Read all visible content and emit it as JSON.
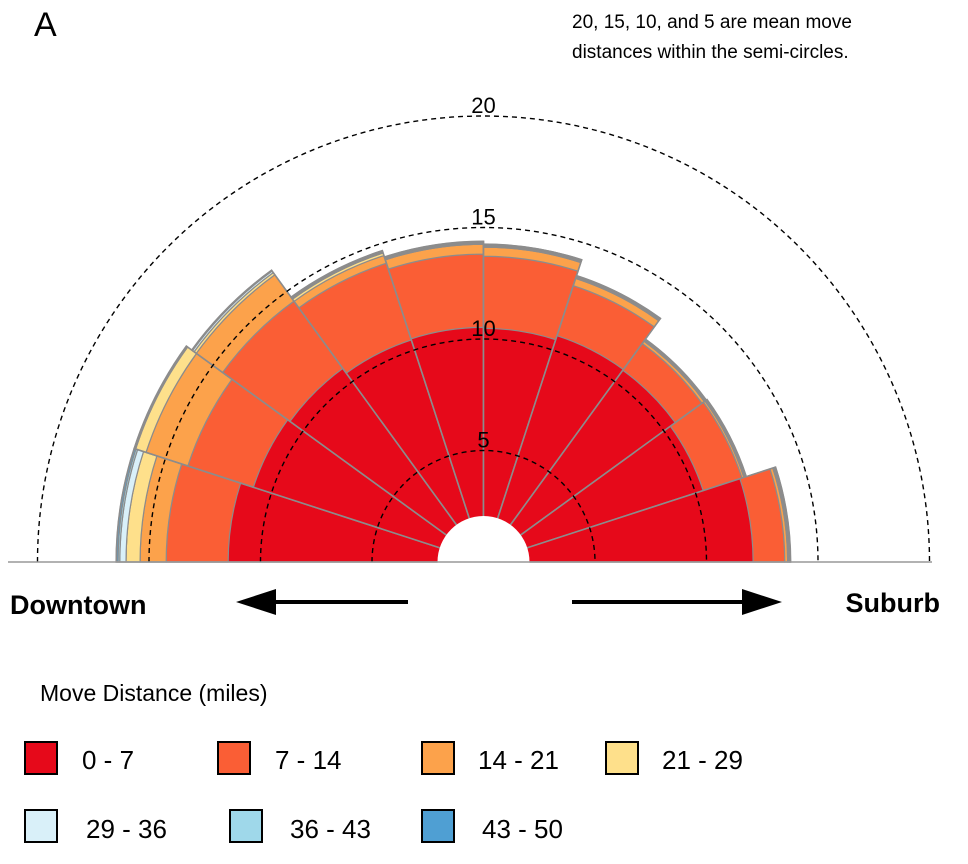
{
  "panel_label": "A",
  "note_lines": [
    "20, 15, 10, and 5 are mean move",
    "distances within the semi-circles."
  ],
  "direction_labels": {
    "left": "Downtown",
    "right": "Suburb"
  },
  "legend": {
    "title": "Move Distance (miles)",
    "items": [
      {
        "label": "0 - 7",
        "color": "#e6091a"
      },
      {
        "label": "7 - 14",
        "color": "#fa5e35"
      },
      {
        "label": "14 - 21",
        "color": "#fca24b"
      },
      {
        "label": "21 - 29",
        "color": "#fee08b"
      },
      {
        "label": "29 - 36",
        "color": "#d9f0f9"
      },
      {
        "label": "36 - 43",
        "color": "#9fd8ea"
      },
      {
        "label": "43 - 50",
        "color": "#4f9fd3"
      }
    ]
  },
  "chart_data": {
    "type": "radial-stacked-bar",
    "angular_axis": "Downtown (left) to Suburb (right)",
    "sectors": 10,
    "series_colors_by_band": [
      "#e6091a",
      "#fa5e35",
      "#fca24b",
      "#fee08b",
      "#d9f0f9",
      "#9fd8ea",
      "#4f9fd3"
    ],
    "stacks": [
      [
        11.45,
        2.78,
        1.17,
        0.63,
        0.28,
        0.08,
        0.08
      ],
      [
        10.85,
        3.09,
        1.97,
        0.49,
        0.05,
        0.02,
        0.0
      ],
      [
        10.73,
        3.73,
        1.46,
        0.12,
        0.09,
        0.04,
        0.0
      ],
      [
        10.47,
        3.62,
        0.36,
        0.12,
        0.05,
        0.03,
        0.03
      ],
      [
        10.52,
        3.29,
        0.44,
        0.05,
        0.04,
        0.02,
        0.02
      ],
      [
        10.48,
        3.23,
        0.41,
        0.05,
        0.04,
        0.02,
        0.02
      ],
      [
        10.67,
        2.36,
        0.34,
        0.05,
        0.04,
        0.02,
        0.02
      ],
      [
        10.63,
        1.48,
        0.13,
        0.04,
        0.03,
        0.02,
        0.02
      ],
      [
        10.36,
        1.83,
        0.09,
        0.04,
        0.03,
        0.02,
        0.02
      ],
      [
        12.09,
        1.42,
        0.13,
        0.05,
        0.04,
        0.02,
        0.02
      ]
    ],
    "reference_circles": [
      {
        "value": 20,
        "label": "20"
      },
      {
        "value": 15,
        "label": "15"
      },
      {
        "value": 10,
        "label": "10"
      },
      {
        "value": 5,
        "label": "5"
      }
    ],
    "title": "",
    "xlabel": "",
    "ylabel": ""
  }
}
